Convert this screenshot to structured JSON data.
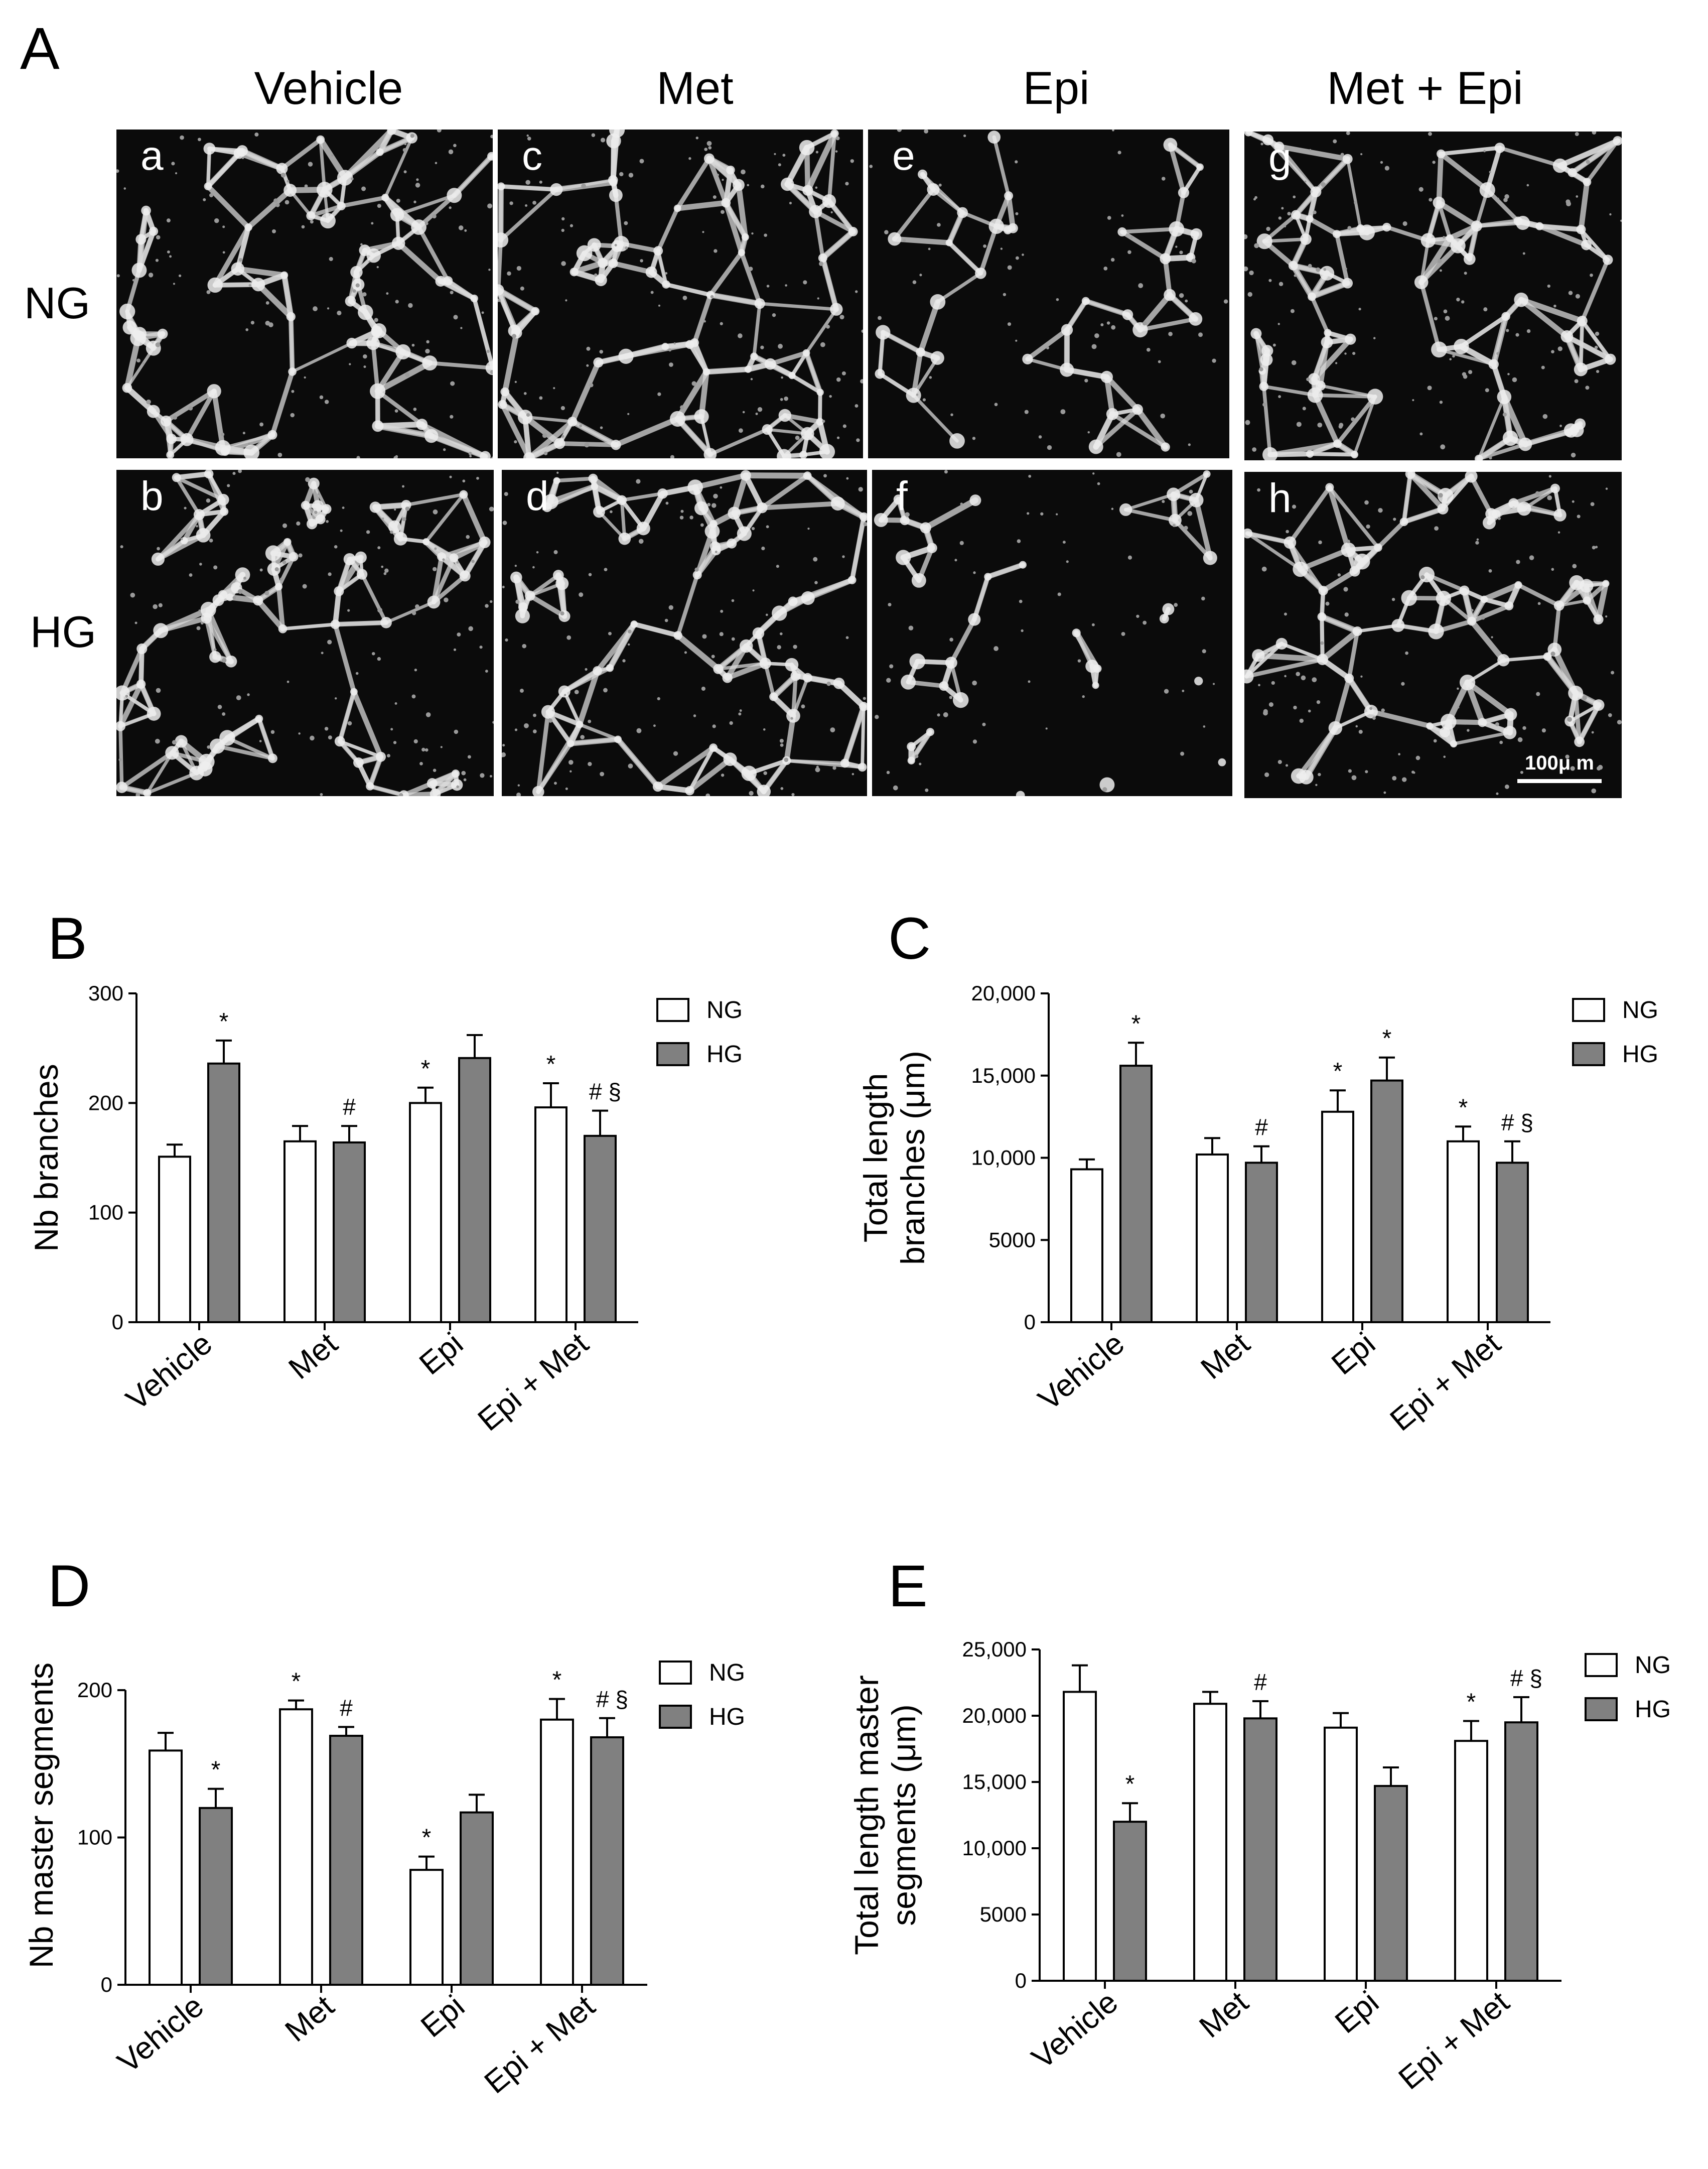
{
  "panel_a": {
    "letter": "A",
    "columns": [
      "Vehicle",
      "Met",
      "Epi",
      "Met + Epi"
    ],
    "rows": [
      "NG",
      "HG"
    ],
    "subpanels": [
      {
        "id": "a",
        "density": 1.0
      },
      {
        "id": "b",
        "density": 1.05
      },
      {
        "id": "c",
        "density": 1.0
      },
      {
        "id": "d",
        "density": 0.95
      },
      {
        "id": "e",
        "density": 0.55
      },
      {
        "id": "f",
        "density": 0.5
      },
      {
        "id": "g",
        "density": 1.0
      },
      {
        "id": "h",
        "density": 0.9
      }
    ],
    "scale_bar_label": "100μ m"
  },
  "chart_data": [
    {
      "id": "B",
      "letter": "B",
      "type": "bar",
      "categories": [
        "Vehicle",
        "Met",
        "Epi",
        "Epi + Met"
      ],
      "series": [
        {
          "name": "NG",
          "color": "#ffffff",
          "values": [
            151,
            165,
            200,
            196
          ],
          "errors": [
            11,
            14,
            14,
            22
          ]
        },
        {
          "name": "HG",
          "color": "#808080",
          "values": [
            236,
            164,
            241,
            170
          ],
          "errors": [
            21,
            15,
            21,
            23
          ]
        }
      ],
      "annotations": [
        [
          "",
          "*"
        ],
        [
          "",
          "#"
        ],
        [
          "*",
          ""
        ],
        [
          "*",
          "# §"
        ]
      ],
      "ylabel": "Nb branches",
      "ylim": [
        0,
        300
      ],
      "yticks": [
        0,
        100,
        200,
        300
      ],
      "ytick_labels": [
        "0",
        "100",
        "200",
        "300"
      ],
      "legend_position": "top-right"
    },
    {
      "id": "C",
      "letter": "C",
      "type": "bar",
      "categories": [
        "Vehicle",
        "Met",
        "Epi",
        "Epi + Met"
      ],
      "series": [
        {
          "name": "NG",
          "color": "#ffffff",
          "values": [
            9300,
            10200,
            12800,
            11000
          ],
          "errors": [
            600,
            1000,
            1300,
            900
          ]
        },
        {
          "name": "HG",
          "color": "#808080",
          "values": [
            15600,
            9700,
            14700,
            9700
          ],
          "errors": [
            1400,
            1000,
            1400,
            1300
          ]
        }
      ],
      "annotations": [
        [
          "",
          "*"
        ],
        [
          "",
          "#"
        ],
        [
          "*",
          "*"
        ],
        [
          "*",
          "# §"
        ]
      ],
      "ylabel_lines": [
        "Total length",
        "branches (μm)"
      ],
      "ylim": [
        0,
        20000
      ],
      "yticks": [
        0,
        5000,
        10000,
        15000,
        20000
      ],
      "ytick_labels": [
        "0",
        "5000",
        "10,000",
        "15,000",
        "20,000"
      ],
      "legend_position": "top-right"
    },
    {
      "id": "D",
      "letter": "D",
      "type": "bar",
      "categories": [
        "Vehicle",
        "Met",
        "Epi",
        "Epi + Met"
      ],
      "series": [
        {
          "name": "NG",
          "color": "#ffffff",
          "values": [
            159,
            187,
            78,
            180
          ],
          "errors": [
            12,
            6,
            9,
            14
          ]
        },
        {
          "name": "HG",
          "color": "#808080",
          "values": [
            120,
            169,
            117,
            168
          ],
          "errors": [
            13,
            6,
            12,
            13
          ]
        }
      ],
      "annotations": [
        [
          "",
          "*"
        ],
        [
          "*",
          "#"
        ],
        [
          "*",
          ""
        ],
        [
          "*",
          "# §"
        ]
      ],
      "ylabel": "Nb master segments",
      "ylim": [
        0,
        230
      ],
      "yticks": [
        0,
        100,
        200
      ],
      "ytick_labels": [
        "0",
        "100",
        "200"
      ],
      "legend_position": "top-right"
    },
    {
      "id": "E",
      "letter": "E",
      "type": "bar",
      "categories": [
        "Vehicle",
        "Met",
        "Epi",
        "Epi + Met"
      ],
      "series": [
        {
          "name": "NG",
          "color": "#ffffff",
          "values": [
            21800,
            20900,
            19100,
            18100
          ],
          "errors": [
            2000,
            900,
            1100,
            1500
          ]
        },
        {
          "name": "HG",
          "color": "#808080",
          "values": [
            12000,
            19800,
            14700,
            19500
          ],
          "errors": [
            1400,
            1300,
            1400,
            1900
          ]
        }
      ],
      "annotations": [
        [
          "",
          "*"
        ],
        [
          "",
          "#"
        ],
        [
          "",
          ""
        ],
        [
          "*",
          "# §"
        ]
      ],
      "ylabel_lines": [
        "Total length master",
        "segments (μm)"
      ],
      "ylim": [
        0,
        25000
      ],
      "yticks": [
        0,
        5000,
        10000,
        15000,
        20000,
        25000
      ],
      "ytick_labels": [
        "0",
        "5000",
        "10,000",
        "15,000",
        "20,000",
        "25,000"
      ],
      "legend_position": "top-right"
    }
  ]
}
